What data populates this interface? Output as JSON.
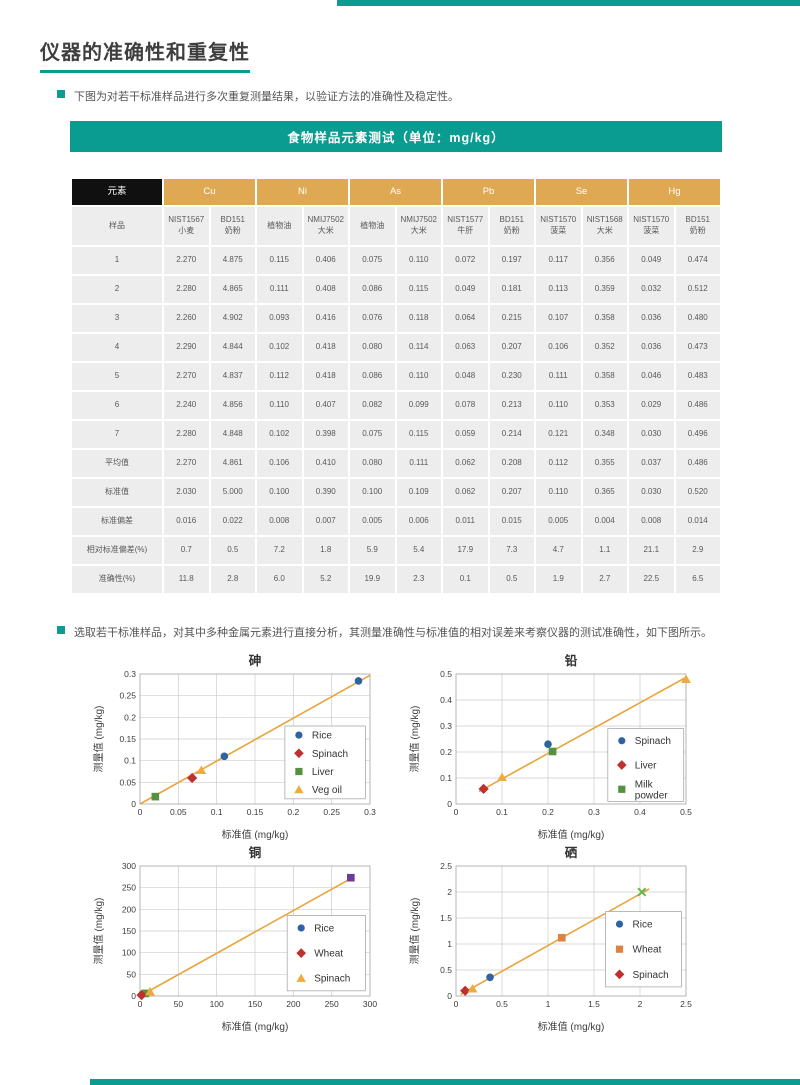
{
  "page": {
    "title": "仪器的准确性和重复性",
    "bullet1": "下图为对若干标准样品进行多次重复测量结果，以验证方法的准确性及稳定性。",
    "bullet2": "选取若干标准样品，对其中多种金属元素进行直接分析，其测量准确性与标准值的相对误差来考察仪器的测试准确性，如下图所示。",
    "banner": "食物样品元素测试（单位：mg/kg）"
  },
  "icons": {
    "bullet": "teal-square"
  },
  "colors": {
    "accent_teal": "#0a9b91",
    "header_gold": "#dfa954",
    "header_black": "#101010",
    "cell_gray": "#ededed",
    "text_gray": "#595959"
  },
  "table": {
    "corner_label": "元素",
    "element_groups": [
      "Cu",
      "Ni",
      "As",
      "Pb",
      "Se",
      "Hg"
    ],
    "sample_row_label": "样品",
    "samples": [
      "NIST1567\n小麦",
      "BD151\n奶粉",
      "植物油",
      "NMIJ7502\n大米",
      "植物油",
      "NMIJ7502\n大米",
      "NIST1577\n牛肝",
      "BD151\n奶粉",
      "NIST1570\n菠菜",
      "NIST1568\n大米",
      "NIST1570\n菠菜",
      "BD151\n奶粉"
    ],
    "rows": [
      {
        "label": "1",
        "values": [
          "2.270",
          "4.875",
          "0.115",
          "0.406",
          "0.075",
          "0.110",
          "0.072",
          "0.197",
          "0.117",
          "0.356",
          "0.049",
          "0.474"
        ]
      },
      {
        "label": "2",
        "values": [
          "2.280",
          "4.865",
          "0.111",
          "0.408",
          "0.086",
          "0.115",
          "0.049",
          "0.181",
          "0.113",
          "0.359",
          "0.032",
          "0.512"
        ]
      },
      {
        "label": "3",
        "values": [
          "2.260",
          "4.902",
          "0.093",
          "0.416",
          "0.076",
          "0.118",
          "0.064",
          "0.215",
          "0.107",
          "0.358",
          "0.036",
          "0.480"
        ]
      },
      {
        "label": "4",
        "values": [
          "2.290",
          "4.844",
          "0.102",
          "0.418",
          "0.080",
          "0.114",
          "0.063",
          "0.207",
          "0.106",
          "0.352",
          "0.036",
          "0.473"
        ]
      },
      {
        "label": "5",
        "values": [
          "2.270",
          "4.837",
          "0.112",
          "0.418",
          "0.086",
          "0.110",
          "0.048",
          "0.230",
          "0.111",
          "0.358",
          "0.046",
          "0.483"
        ]
      },
      {
        "label": "6",
        "values": [
          "2.240",
          "4.856",
          "0.110",
          "0.407",
          "0.082",
          "0.099",
          "0.078",
          "0.213",
          "0.110",
          "0.353",
          "0.029",
          "0.486"
        ]
      },
      {
        "label": "7",
        "values": [
          "2.280",
          "4.848",
          "0.102",
          "0.398",
          "0.075",
          "0.115",
          "0.059",
          "0.214",
          "0.121",
          "0.348",
          "0.030",
          "0.496"
        ]
      },
      {
        "label": "平均值",
        "values": [
          "2.270",
          "4.861",
          "0.106",
          "0.410",
          "0.080",
          "0.111",
          "0.062",
          "0.208",
          "0.112",
          "0.355",
          "0.037",
          "0.486"
        ]
      },
      {
        "label": "标准值",
        "values": [
          "2.030",
          "5.000",
          "0.100",
          "0.390",
          "0.100",
          "0.109",
          "0.062",
          "0.207",
          "0.110",
          "0.365",
          "0.030",
          "0.520"
        ]
      },
      {
        "label": "标准偏差",
        "values": [
          "0.016",
          "0.022",
          "0.008",
          "0.007",
          "0.005",
          "0.006",
          "0.011",
          "0.015",
          "0.005",
          "0.004",
          "0.008",
          "0.014"
        ]
      },
      {
        "label": "相对标准偏差(%)",
        "values": [
          "0.7",
          "0.5",
          "7.2",
          "1.8",
          "5.9",
          "5.4",
          "17.9",
          "7.3",
          "4.7",
          "1.1",
          "21.1",
          "2.9"
        ]
      },
      {
        "label": "准确性(%)",
        "values": [
          "11.8",
          "2.8",
          "6.0",
          "5.2",
          "19.9",
          "2.3",
          "0.1",
          "0.5",
          "1.9",
          "2.7",
          "22.5",
          "6.5"
        ]
      }
    ]
  },
  "chart_data": [
    {
      "type": "scatter",
      "title": "砷",
      "xlabel": "标准值 (mg/kg)",
      "ylabel": "测量值 (mg/kg)",
      "xlim": [
        0,
        0.3
      ],
      "ylim": [
        0,
        0.3
      ],
      "xticks": [
        "0",
        "0.05",
        "0.1",
        "0.15",
        "0.2",
        "0.25",
        "0.3"
      ],
      "yticks": [
        "0",
        "0.05",
        "0.1",
        "0.15",
        "0.2",
        "0.25",
        "0.3"
      ],
      "grid": true,
      "fit_line": {
        "x1": 0,
        "y1": 0,
        "x2": 0.3,
        "y2": 0.297,
        "color": "#e9a43b"
      },
      "series": [
        {
          "name": "Rice",
          "marker": "circle",
          "color": "#2e64a1",
          "points": [
            [
              0.11,
              0.11
            ],
            [
              0.285,
              0.284
            ]
          ]
        },
        {
          "name": "Spinach",
          "marker": "diamond",
          "color": "#bd3230",
          "points": [
            [
              0.068,
              0.06
            ]
          ]
        },
        {
          "name": "Liver",
          "marker": "square",
          "color": "#55913e",
          "points": [
            [
              0.02,
              0.017
            ]
          ]
        },
        {
          "name": "Veg oil",
          "marker": "triangle",
          "color": "#ecaa3f",
          "points": [
            [
              0.08,
              0.078
            ]
          ]
        }
      ],
      "legend": {
        "position": "right-center-inside",
        "box": [
          0.63,
          0.4,
          0.35,
          0.56
        ],
        "items": [
          {
            "label": "Rice",
            "marker": "circle",
            "color": "#2e64a1"
          },
          {
            "label": "Spinach",
            "marker": "diamond",
            "color": "#bd3230"
          },
          {
            "label": "Liver",
            "marker": "square",
            "color": "#55913e"
          },
          {
            "label": "Veg oil",
            "marker": "triangle",
            "color": "#ecaa3f"
          }
        ]
      }
    },
    {
      "type": "scatter",
      "title": "铅",
      "xlabel": "标准值 (mg/kg)",
      "ylabel": "测量值 (mg/kg)",
      "xlim": [
        0,
        0.5
      ],
      "ylim": [
        0,
        0.5
      ],
      "xticks": [
        "0",
        "0.1",
        "0.2",
        "0.3",
        "0.4",
        "0.5"
      ],
      "yticks": [
        "0",
        "0.1",
        "0.2",
        "0.3",
        "0.4",
        "0.5"
      ],
      "grid": true,
      "fit_line": {
        "x1": 0.05,
        "y1": 0.048,
        "x2": 0.5,
        "y2": 0.487,
        "color": "#e9a43b"
      },
      "series": [
        {
          "marker": "triangle",
          "color": "#ecaa3f",
          "points": [
            [
              0.1,
              0.103
            ],
            [
              0.5,
              0.48
            ]
          ]
        },
        {
          "name": "Spinach",
          "marker": "circle",
          "color": "#2e64a1",
          "points": [
            [
              0.2,
              0.23
            ]
          ]
        },
        {
          "name": "Liver",
          "marker": "diamond",
          "color": "#bd3230",
          "points": [
            [
              0.06,
              0.058
            ]
          ]
        },
        {
          "name": "Milk powder",
          "marker": "square",
          "color": "#55913e",
          "points": [
            [
              0.21,
              0.202
            ]
          ]
        }
      ],
      "legend": {
        "position": "right-center-inside",
        "box": [
          0.66,
          0.42,
          0.33,
          0.56
        ],
        "items": [
          {
            "label": "Spinach",
            "marker": "circle",
            "color": "#2e64a1"
          },
          {
            "label": "Liver",
            "marker": "diamond",
            "color": "#bd3230"
          },
          {
            "label": "Milk\npowder",
            "marker": "square",
            "color": "#55913e"
          }
        ]
      }
    },
    {
      "type": "scatter",
      "title": "铜",
      "xlabel": "标准值 (mg/kg)",
      "ylabel": "测量值 (mg/kg)",
      "xlim": [
        0,
        300
      ],
      "ylim": [
        0,
        300
      ],
      "xticks": [
        "0",
        "50",
        "100",
        "150",
        "200",
        "250",
        "300"
      ],
      "yticks": [
        "0",
        "50",
        "100",
        "150",
        "200",
        "250",
        "300"
      ],
      "grid": true,
      "fit_line": {
        "x1": 0,
        "y1": 0,
        "x2": 275,
        "y2": 271,
        "color": "#e9a43b"
      },
      "series": [
        {
          "name": "Rice",
          "marker": "circle",
          "color": "#2e64a1",
          "points": [
            [
              3,
              4
            ]
          ]
        },
        {
          "marker": "square",
          "color": "#55913e",
          "points": [
            [
              7,
              6
            ]
          ]
        },
        {
          "name": "Wheat",
          "marker": "diamond",
          "color": "#bd3230",
          "points": [
            [
              2,
              2
            ]
          ]
        },
        {
          "name": "Spinach",
          "marker": "triangle",
          "color": "#ecaa3f",
          "points": [
            [
              13,
              10
            ]
          ]
        },
        {
          "marker": "square",
          "color": "#6b3a9b",
          "points": [
            [
              275,
              273
            ]
          ]
        }
      ],
      "legend": {
        "position": "right-center-inside",
        "box": [
          0.64,
          0.38,
          0.34,
          0.58
        ],
        "items": [
          {
            "label": "Rice",
            "marker": "circle",
            "color": "#2e64a1"
          },
          {
            "label": "Wheat",
            "marker": "diamond",
            "color": "#bd3230"
          },
          {
            "label": "Spinach",
            "marker": "triangle",
            "color": "#ecaa3f"
          }
        ]
      }
    },
    {
      "type": "scatter",
      "title": "硒",
      "xlabel": "标准值 (mg/kg)",
      "ylabel": "测量值 (mg/kg)",
      "xlim": [
        0,
        2.5
      ],
      "ylim": [
        0,
        2.5
      ],
      "xticks": [
        "0",
        "0.5",
        "1",
        "1.5",
        "2",
        "2.5"
      ],
      "yticks": [
        "0",
        "0.5",
        "1",
        "1.5",
        "2",
        "2.5"
      ],
      "grid": true,
      "fit_line": {
        "x1": 0.05,
        "y1": 0.03,
        "x2": 2.1,
        "y2": 2.06,
        "color": "#e9a43b"
      },
      "series": [
        {
          "name": "Spinach",
          "marker": "diamond",
          "color": "#bd3230",
          "points": [
            [
              0.1,
              0.1
            ]
          ]
        },
        {
          "marker": "triangle",
          "color": "#ecaa3f",
          "points": [
            [
              0.18,
              0.14
            ]
          ]
        },
        {
          "name": "Rice",
          "marker": "circle",
          "color": "#2e64a1",
          "points": [
            [
              0.37,
              0.36
            ]
          ]
        },
        {
          "name": "Wheat",
          "marker": "square",
          "color": "#e0813d",
          "points": [
            [
              1.15,
              1.12
            ]
          ]
        },
        {
          "marker": "x",
          "color": "#67b84a",
          "points": [
            [
              2.02,
              2.0
            ]
          ]
        }
      ],
      "legend": {
        "position": "right-center-inside",
        "box": [
          0.65,
          0.35,
          0.33,
          0.58
        ],
        "items": [
          {
            "label": "Rice",
            "marker": "circle",
            "color": "#2e64a1"
          },
          {
            "label": "Wheat",
            "marker": "square",
            "color": "#e0813d"
          },
          {
            "label": "Spinach",
            "marker": "diamond",
            "color": "#bd3230"
          }
        ]
      }
    }
  ]
}
